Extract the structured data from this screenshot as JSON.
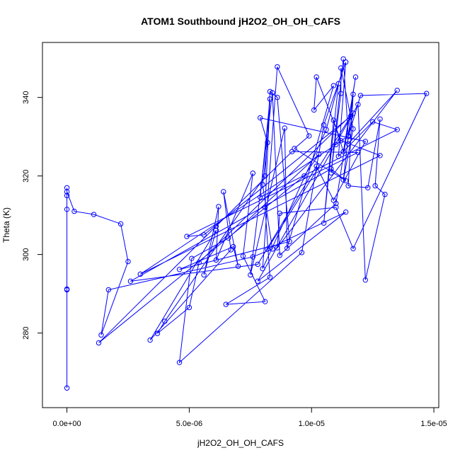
{
  "chart_data": {
    "type": "line",
    "title": "ATOM1 Southbound jH2O2_OH_OH_CAFS",
    "xlabel": "jH2O2_OH_OH_CAFS",
    "ylabel": "Theta (K)",
    "xlim": [
      -1e-06,
      1.52e-05
    ],
    "ylim": [
      261,
      354
    ],
    "x_ticks": [
      0,
      5e-06,
      1e-05,
      1.5e-05
    ],
    "x_tick_labels": [
      "0.0e+00",
      "5.0e-06",
      "1.0e-05",
      "1.5e-05"
    ],
    "y_ticks": [
      280,
      300,
      320,
      340
    ],
    "y_tick_labels": [
      "280",
      "300",
      "320",
      "340"
    ],
    "grid": false,
    "series": [
      {
        "color": "#0000ff",
        "marker": "open-circle",
        "points": [
          [
            0.0,
            266.0
          ],
          [
            0.0,
            291.0
          ],
          [
            0.0,
            291.2
          ],
          [
            0.0,
            311.5
          ],
          [
            0.0,
            315.0
          ],
          [
            0.0,
            317.0
          ],
          [
            0.0,
            316.0
          ],
          [
            3e-07,
            311.0
          ],
          [
            1.1e-06,
            310.2
          ],
          [
            2.2e-06,
            307.8
          ],
          [
            2.5e-06,
            298.2
          ],
          [
            1.4e-06,
            279.5
          ],
          [
            1.7e-06,
            291.0
          ],
          [
            7.6e-06,
            299.4
          ],
          [
            8.4e-06,
            301.4
          ],
          [
            8e-06,
            317.8
          ],
          [
            8.2e-06,
            328.5
          ],
          [
            7.9e-06,
            334.8
          ],
          [
            1.22e-05,
            328.8
          ],
          [
            1.09e-05,
            313.8
          ],
          [
            1.02e-05,
            322.5
          ],
          [
            7.8e-06,
            297.5
          ],
          [
            2.6e-06,
            293.2
          ],
          [
            1.08e-05,
            321.8
          ],
          [
            1.14e-05,
            318.8
          ],
          [
            9.3e-06,
            327.0
          ],
          [
            9.9e-06,
            330.2
          ],
          [
            8.6e-06,
            347.8
          ],
          [
            8e-06,
            296.4
          ],
          [
            1.06e-05,
            331.8
          ],
          [
            1.11e-05,
            343.5
          ],
          [
            1.05e-05,
            308.0
          ],
          [
            1.09e-05,
            334.2
          ],
          [
            1.13e-05,
            326.2
          ],
          [
            1.18e-05,
            345.2
          ],
          [
            1.1e-05,
            313.0
          ],
          [
            8.7e-06,
            299.8
          ],
          [
            8.4e-06,
            341.2
          ],
          [
            7.5e-06,
            294.8
          ],
          [
            8.9e-06,
            332.2
          ],
          [
            9e-06,
            301.6
          ],
          [
            1.09e-05,
            343.0
          ],
          [
            1.01e-05,
            336.8
          ],
          [
            1.02e-05,
            345.2
          ],
          [
            1.12e-05,
            329.0
          ],
          [
            1.28e-05,
            325.2
          ],
          [
            3e-06,
            295.0
          ],
          [
            1.1e-05,
            328.0
          ],
          [
            1.15e-05,
            330.3
          ],
          [
            1.13e-05,
            349.8
          ],
          [
            1.08e-05,
            320.8
          ],
          [
            1.12e-05,
            341.0
          ],
          [
            1.12e-05,
            347.5
          ],
          [
            1.17e-05,
            332.0
          ],
          [
            1.13e-05,
            319.0
          ],
          [
            1.17e-05,
            340.8
          ],
          [
            1.15e-05,
            317.5
          ],
          [
            1.23e-05,
            317.0
          ],
          [
            1.28e-05,
            334.5
          ],
          [
            1.26e-05,
            317.5
          ],
          [
            1.3e-05,
            315.3
          ],
          [
            1.22e-05,
            293.5
          ],
          [
            1.19e-05,
            338.2
          ],
          [
            7.8e-06,
            293.2
          ],
          [
            1.14e-05,
            310.8
          ],
          [
            8.2e-06,
            301.4
          ],
          [
            1.16e-05,
            335.2
          ],
          [
            5.6e-06,
            305.0
          ],
          [
            4.9e-06,
            304.6
          ],
          [
            1.19e-05,
            326.0
          ],
          [
            9.2e-06,
            326.2
          ],
          [
            6.1e-06,
            307.2
          ],
          [
            1.3e-06,
            277.5
          ],
          [
            9.7e-06,
            320.0
          ],
          [
            1.03e-05,
            325.5
          ],
          [
            6.6e-06,
            304.2
          ],
          [
            5.1e-06,
            299.0
          ],
          [
            4.6e-06,
            272.5
          ],
          [
            9.6e-06,
            300.5
          ],
          [
            1.05e-05,
            333.0
          ],
          [
            1.14e-05,
            349.0
          ],
          [
            1.11e-05,
            325.0
          ],
          [
            1.25e-05,
            333.8
          ],
          [
            1.35e-05,
            331.8
          ],
          [
            7.9e-06,
            314.6
          ],
          [
            8.3e-06,
            339.6
          ],
          [
            8.1e-06,
            312.0
          ],
          [
            8.3e-06,
            294.2
          ],
          [
            6.5e-06,
            287.3
          ],
          [
            8.1e-06,
            288.0
          ],
          [
            7.2e-06,
            299.6
          ],
          [
            7.6e-06,
            320.7
          ],
          [
            6.1e-06,
            298.6
          ],
          [
            6.2e-06,
            312.2
          ],
          [
            5.6e-06,
            294.8
          ],
          [
            6.1e-06,
            306.2
          ],
          [
            3.4e-06,
            278.2
          ],
          [
            6.7e-06,
            301.2
          ],
          [
            6.4e-06,
            316.0
          ],
          [
            7e-06,
            297.0
          ],
          [
            6.8e-06,
            302.0
          ],
          [
            4.6e-06,
            296.2
          ],
          [
            9.1e-06,
            303.3
          ],
          [
            8.6e-06,
            340.0
          ],
          [
            8.3e-06,
            341.5
          ],
          [
            8.1e-06,
            320.0
          ],
          [
            4e-06,
            283.0
          ],
          [
            3.7e-06,
            279.9
          ],
          [
            5e-06,
            286.5
          ],
          [
            5.4e-06,
            298.0
          ],
          [
            1.17e-05,
            336.0
          ],
          [
            1.15e-05,
            330.0
          ],
          [
            1.2e-05,
            340.5
          ],
          [
            1.47e-05,
            341.0
          ],
          [
            1.17e-05,
            301.5
          ],
          [
            1.1e-05,
            312.0
          ],
          [
            8.7e-06,
            310.5
          ],
          [
            8.6e-06,
            301.7
          ],
          [
            1.35e-05,
            341.8
          ],
          [
            1.15e-05,
            328.2
          ]
        ]
      }
    ]
  }
}
